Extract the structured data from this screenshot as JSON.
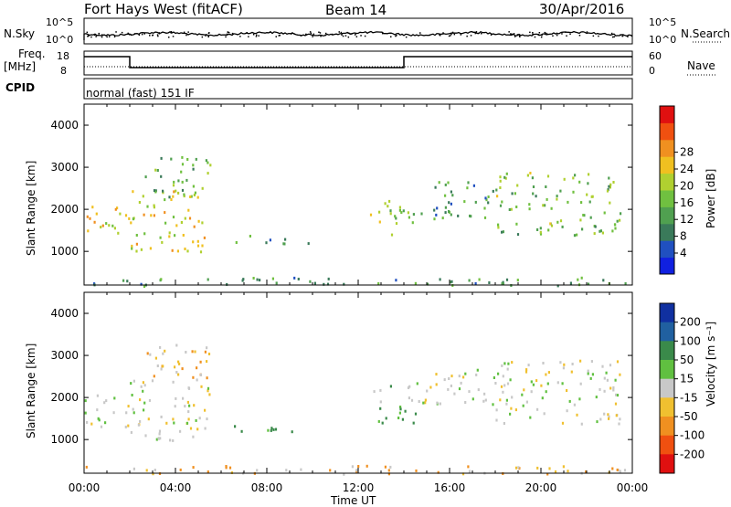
{
  "header": {
    "radar": "Fort Hays West (fitACF)",
    "beam": "Beam 14",
    "date": "30/Apr/2016"
  },
  "top_panels": {
    "nsky_label": "N.Sky",
    "nsky_ticks": [
      "10^5",
      "10^0"
    ],
    "nsearch_label": "N.Search",
    "nsearch_ticks": [
      "10^5",
      "10^0"
    ],
    "freq_label": "Freq.",
    "freq_unit": "[MHz]",
    "freq_ticks": [
      "18",
      "8"
    ],
    "nave_label": "Nave",
    "nave_ticks": [
      "60",
      "0"
    ],
    "cpid_label": "CPID",
    "cpid_text": "normal (fast) 151 IF"
  },
  "panel_colors": {
    "frame": "#000000",
    "background": "#ffffff"
  },
  "chart_data": [
    {
      "type": "heatmap",
      "name": "power",
      "ylabel": "Slant Range [km]",
      "xlabel": "",
      "xlim": [
        "00:00",
        "24:00"
      ],
      "ylim": [
        200,
        4500
      ],
      "yticks": [
        1000,
        2000,
        3000,
        4000
      ],
      "colorbar": {
        "label": "Power [dB]",
        "ticks": [
          4,
          8,
          12,
          16,
          20,
          24,
          28
        ],
        "colors": [
          "#1020e0",
          "#2050c0",
          "#3a7a5a",
          "#50a050",
          "#70c040",
          "#b0d030",
          "#f0c020",
          "#f09020",
          "#f05010",
          "#e01010"
        ]
      },
      "regions": [
        {
          "t": [
            0.0,
            2.0
          ],
          "range": [
            1300,
            2100
          ],
          "level": 20
        },
        {
          "t": [
            2.0,
            5.5
          ],
          "range": [
            1000,
            2500
          ],
          "level": 20
        },
        {
          "t": [
            2.5,
            5.5
          ],
          "range": [
            2300,
            3300
          ],
          "level": 12
        },
        {
          "t": [
            6.5,
            10.0
          ],
          "range": [
            1200,
            1400
          ],
          "level": 8
        },
        {
          "t": [
            12.5,
            14.5
          ],
          "range": [
            1400,
            2300
          ],
          "level": 16
        },
        {
          "t": [
            14.5,
            18.0
          ],
          "range": [
            1800,
            2700
          ],
          "level": 10
        },
        {
          "t": [
            18.0,
            23.5
          ],
          "range": [
            1400,
            2900
          ],
          "level": 14
        },
        {
          "t": [
            0.0,
            24.0
          ],
          "range": [
            200,
            400
          ],
          "level": 10
        }
      ]
    },
    {
      "type": "heatmap",
      "name": "velocity",
      "ylabel": "Slant Range [km]",
      "xlabel": "Time UT",
      "xticks": [
        "00:00",
        "04:00",
        "08:00",
        "12:00",
        "16:00",
        "20:00",
        "00:00"
      ],
      "xlim": [
        "00:00",
        "24:00"
      ],
      "ylim": [
        200,
        4500
      ],
      "yticks": [
        1000,
        2000,
        3000,
        4000
      ],
      "colorbar": {
        "label": "Velocity [m s⁻¹]",
        "ticks": [
          200,
          100,
          50,
          15,
          -15,
          -50,
          -100,
          -200
        ],
        "colors": [
          "#1030a0",
          "#2060a0",
          "#3a8a4a",
          "#60c040",
          "#c8c8c8",
          "#f0c030",
          "#f09020",
          "#f05010",
          "#e01010"
        ]
      },
      "regions": [
        {
          "t": [
            0.0,
            2.0
          ],
          "range": [
            1300,
            2100
          ],
          "level": 0
        },
        {
          "t": [
            2.0,
            5.5
          ],
          "range": [
            1000,
            2500
          ],
          "level": 0
        },
        {
          "t": [
            2.5,
            5.5
          ],
          "range": [
            2300,
            3300
          ],
          "level": -30
        },
        {
          "t": [
            6.5,
            10.0
          ],
          "range": [
            1200,
            1400
          ],
          "level": 40
        },
        {
          "t": [
            12.5,
            14.5
          ],
          "range": [
            1400,
            2300
          ],
          "level": 30
        },
        {
          "t": [
            14.5,
            18.0
          ],
          "range": [
            1800,
            2700
          ],
          "level": 0
        },
        {
          "t": [
            18.0,
            23.5
          ],
          "range": [
            1400,
            2900
          ],
          "level": 0
        },
        {
          "t": [
            0.0,
            24.0
          ],
          "range": [
            200,
            400
          ],
          "level": -30
        }
      ]
    }
  ]
}
